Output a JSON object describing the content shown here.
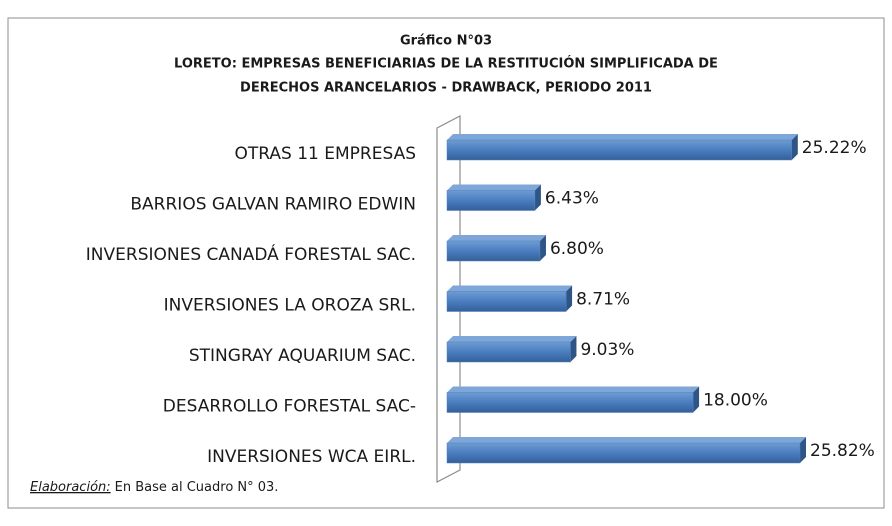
{
  "chart_data": {
    "type": "bar",
    "orientation": "horizontal",
    "title": "Gráfico N°03",
    "subtitle": [
      "LORETO: EMPRESAS BENEFICIARIAS DE LA RESTITUCIÓN SIMPLIFICADA DE",
      "DERECHOS ARANCELARIOS - DRAWBACK, PERIODO 2011"
    ],
    "categories": [
      "OTRAS 11 EMPRESAS",
      "BARRIOS GALVAN RAMIRO EDWIN",
      "INVERSIONES CANADÁ FORESTAL SAC.",
      "INVERSIONES LA OROZA SRL.",
      "STINGRAY AQUARIUM SAC.",
      "DESARROLLO FORESTAL SAC-",
      "INVERSIONES WCA EIRL."
    ],
    "values": [
      25.22,
      6.43,
      6.8,
      8.71,
      9.03,
      18.0,
      25.82
    ],
    "value_labels": [
      "25.22%",
      "6.43%",
      "6.80%",
      "8.71%",
      "9.03%",
      "18.00%",
      "25.82%"
    ],
    "color": "#4f81bd",
    "note": {
      "label": "Elaboración:",
      "text": "En Base al Cuadro N° 03."
    }
  }
}
